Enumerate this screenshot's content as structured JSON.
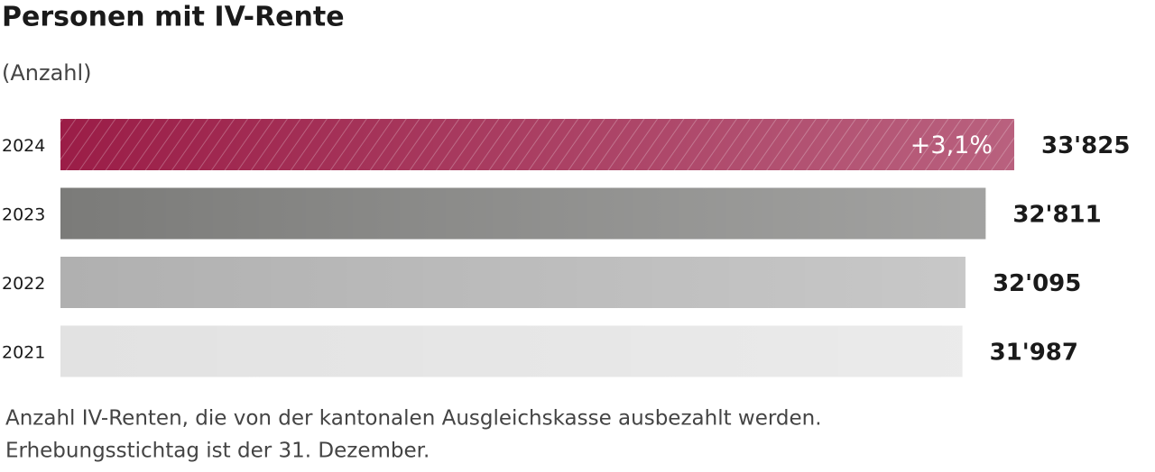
{
  "chart_data": {
    "type": "bar",
    "orientation": "horizontal",
    "title": "Personen mit IV-Rente",
    "subtitle": "(Anzahl)",
    "categories": [
      "2024",
      "2023",
      "2022",
      "2021"
    ],
    "values": [
      33825,
      32811,
      32095,
      31987
    ],
    "value_labels": [
      "33'825",
      "32'811",
      "32'095",
      "31'987"
    ],
    "colors": [
      "#9b1d47",
      "#7b7b79",
      "#b0b0b0",
      "#e2e2e2"
    ],
    "annotation": "+3,1%",
    "footnote": [
      "Anzahl IV-Renten, die von der kantonalen Ausgleichskasse ausbezahlt werden.",
      "Erhebungsstichtag ist der 31. Dezember."
    ]
  }
}
